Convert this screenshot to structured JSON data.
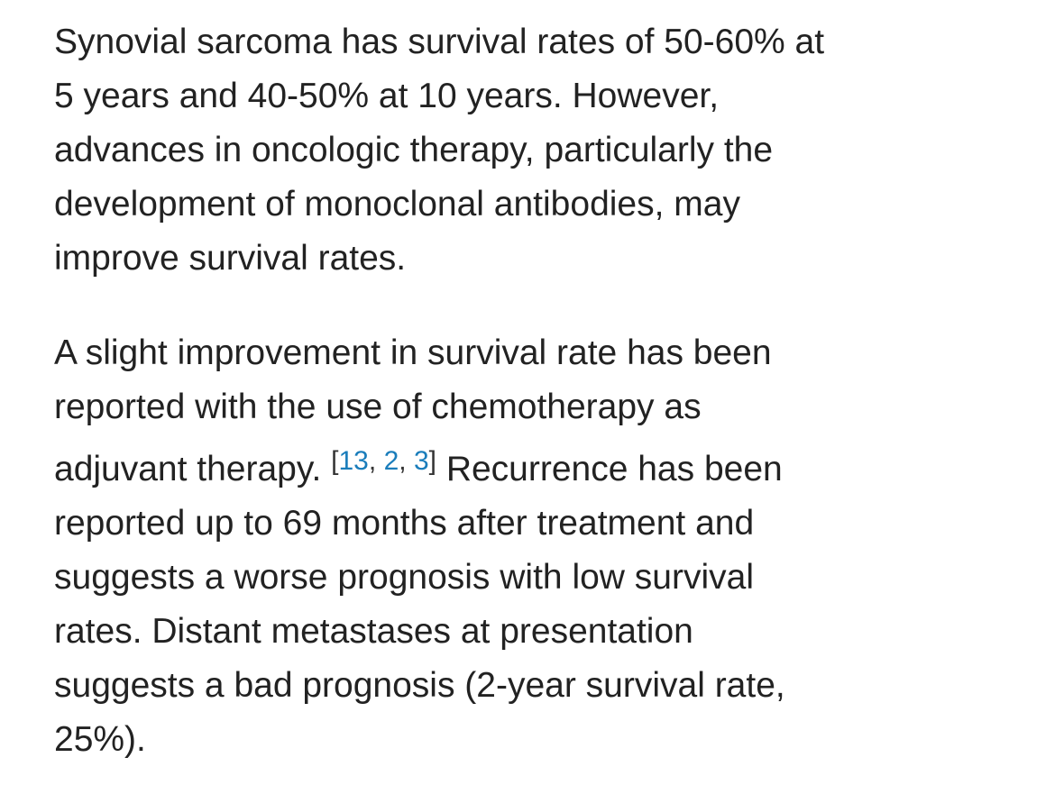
{
  "article": {
    "paragraphs": [
      {
        "lines": [
          "Synovial sarcoma has survival rates of 50-60% at",
          "5 years and 40-50% at 10 years. However,",
          "advances in oncologic therapy, particularly the",
          "development of monoclonal antibodies, may",
          "improve survival rates."
        ]
      },
      {
        "lines_before": [
          "A slight improvement in survival rate has been",
          "reported with the use of chemotherapy as",
          "adjuvant therapy."
        ],
        "citation": {
          "open": "[",
          "refs": [
            "13",
            "2",
            "3"
          ],
          "separator": ",",
          "close": "]"
        },
        "lines_after": [
          "Recurrence has been",
          "reported up to 69 months after treatment and",
          "suggests a worse prognosis with low survival",
          "rates. Distant metastases at presentation",
          "suggests a bad prognosis (2-year survival rate,",
          "25%)."
        ]
      }
    ]
  }
}
